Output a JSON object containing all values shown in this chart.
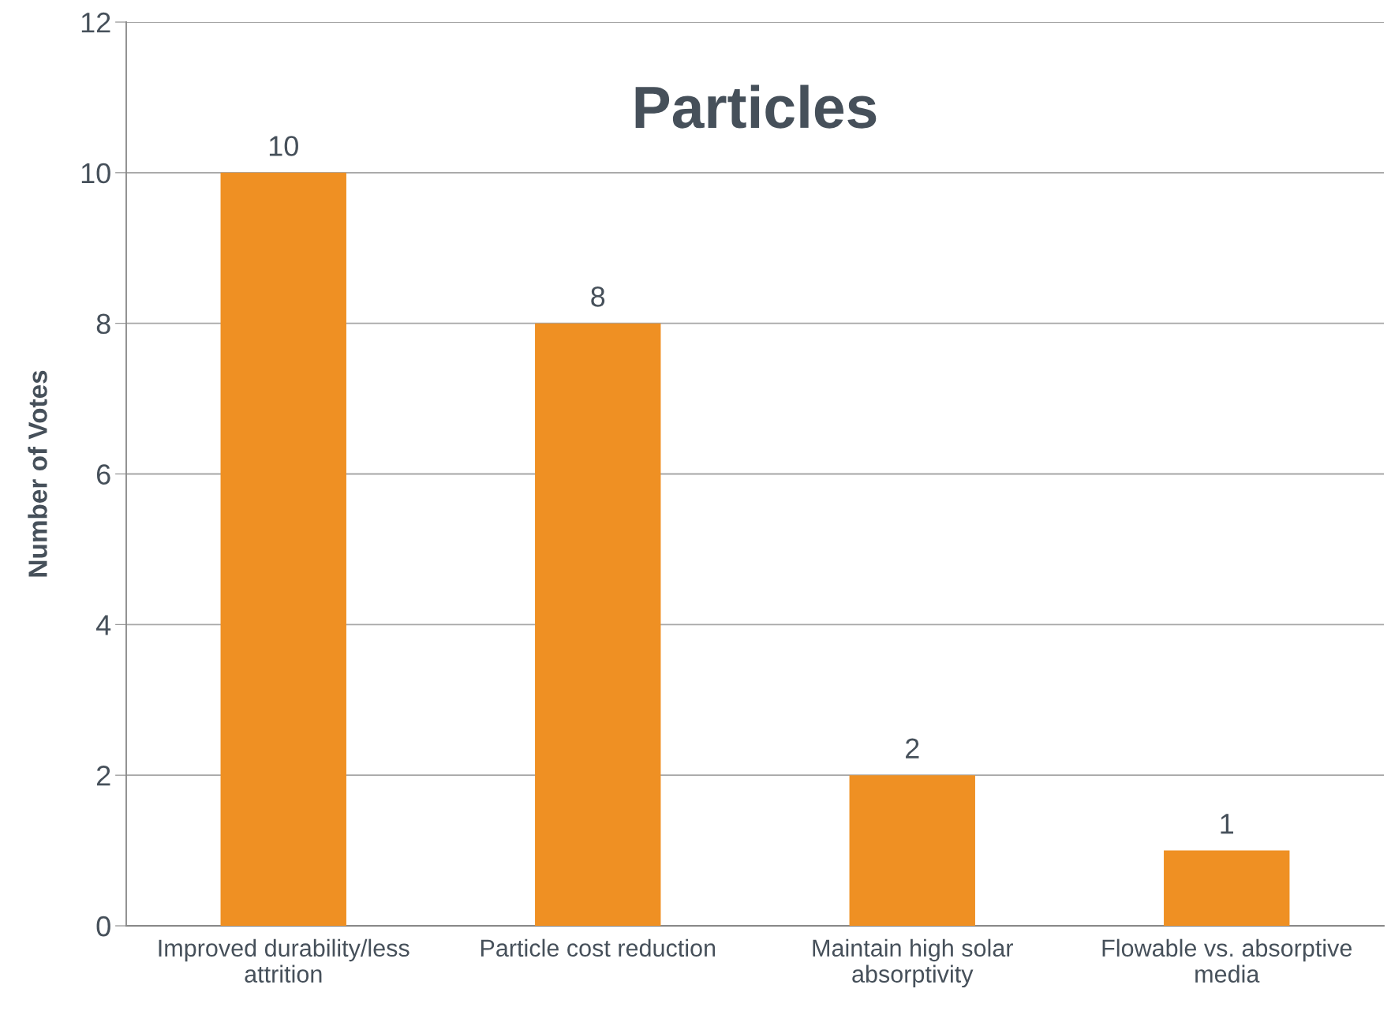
{
  "chart_data": {
    "type": "bar",
    "title": "Particles",
    "ylabel": "Number of Votes",
    "categories": [
      "Improved durability/less\nattrition",
      "Particle cost reduction",
      "Maintain high solar\nabsorptivity",
      "Flowable vs. absorptive\nmedia"
    ],
    "values": [
      10,
      8,
      2,
      1
    ],
    "color": "#ef9023",
    "ylim": [
      0,
      12
    ],
    "yticks": [
      0,
      2,
      4,
      6,
      8,
      10,
      12
    ],
    "grid": "y",
    "data_labels": true
  }
}
